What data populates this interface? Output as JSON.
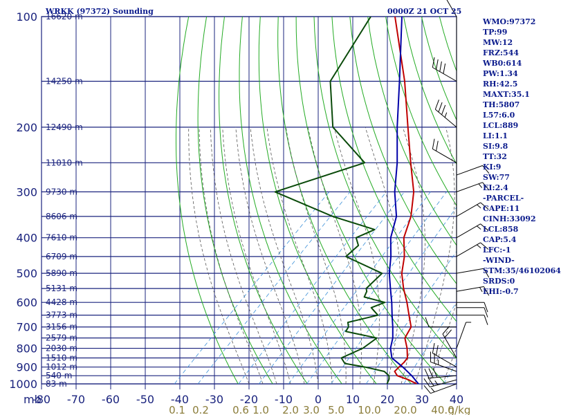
{
  "header": {
    "station": "WRKK (97372) Sounding",
    "time": "0000Z 21 OCT 25"
  },
  "indices": [
    "WMO:97372",
    "TP:99",
    "MW:12",
    "FRZ:544",
    "WB0:614",
    "PW:1.34",
    "RH:42.5",
    "MAXT:35.1",
    "TH:5807",
    "L57:6.0",
    "LCL:889",
    "LI:1.1",
    "SI:9.8",
    "TT:32",
    "KI:9",
    "SW:77",
    "EI:2.4",
    "-PARCEL-",
    "CAPE:11",
    "CINH:33092",
    "LCL:858",
    "CAP:5.4",
    "LFC:-1",
    "-WIND-",
    "STM:35/46102064",
    "SRDS:0",
    "EHI:-0.7"
  ],
  "colors": {
    "isobar": "#1a237e",
    "dry_adiabat": "#22aa22",
    "moist_adiabat": "#555555",
    "mixing_ratio": "#3a8fd8",
    "temperature": "#c00000",
    "dewpoint": "#0a4a0a",
    "parcel": "#0000a8",
    "wind": "#000000",
    "mixing_label": "#8b7d3a"
  },
  "chart_data": {
    "type": "line",
    "title": "",
    "xlabel": "mb",
    "x_ticks": [
      "-80",
      "-70",
      "-60",
      "-50",
      "-40",
      "-30",
      "-20",
      "-10",
      "0",
      "10",
      "20",
      "30",
      "40"
    ],
    "pressure_ticks": [
      "100",
      "200",
      "300",
      "400",
      "500",
      "600",
      "700",
      "800",
      "900",
      "1000"
    ],
    "pressure_levels": [
      100,
      150,
      200,
      250,
      300,
      350,
      400,
      450,
      500,
      550,
      600,
      650,
      700,
      750,
      800,
      850,
      900,
      950,
      1000
    ],
    "height_labels": [
      "16620 m",
      "14250 m",
      "12490 m",
      "11010 m",
      "9730 m",
      "8606 m",
      "7610 m",
      "6709 m",
      "5890 m",
      "5131 m",
      "4428 m",
      "3773 m",
      "3156 m",
      "2579 m",
      "2030 m",
      "1510 m",
      "1012 m",
      "540 m",
      "83 m"
    ],
    "mixing_ratio_labels": [
      "0.1",
      "0.2",
      "0.6",
      "1.0",
      "2.0",
      "3.0",
      "5.0",
      "10.0",
      "20.0",
      "40.0"
    ],
    "mixing_ratio_unit": "g/kg",
    "xlim": [
      -80,
      40
    ],
    "ylim": [
      1000,
      100
    ],
    "series": [
      {
        "key": "temperature",
        "points": [
          [
            1000,
            28.5
          ],
          [
            975,
            25.0
          ],
          [
            950,
            20.5
          ],
          [
            925,
            18.5
          ],
          [
            900,
            18.5
          ],
          [
            875,
            18.6
          ],
          [
            850,
            18.3
          ],
          [
            800,
            15.4
          ],
          [
            750,
            11.8
          ],
          [
            700,
            10.4
          ],
          [
            650,
            6.4
          ],
          [
            600,
            2.1
          ],
          [
            550,
            -2.9
          ],
          [
            500,
            -7.8
          ],
          [
            450,
            -11.9
          ],
          [
            400,
            -17.5
          ],
          [
            350,
            -21.6
          ],
          [
            300,
            -27.9
          ],
          [
            250,
            -37.2
          ],
          [
            200,
            -48.3
          ],
          [
            150,
            -62.5
          ],
          [
            100,
            -84.0
          ]
        ]
      },
      {
        "key": "dewpoint",
        "points": [
          [
            1000,
            19.9
          ],
          [
            970,
            19.1
          ],
          [
            950,
            18.1
          ],
          [
            925,
            15.5
          ],
          [
            900,
            8.7
          ],
          [
            880,
            1.8
          ],
          [
            850,
            -0.8
          ],
          [
            800,
            2.6
          ],
          [
            750,
            3.7
          ],
          [
            720,
            -7.2
          ],
          [
            700,
            -7.7
          ],
          [
            680,
            -9.2
          ],
          [
            650,
            -2.6
          ],
          [
            620,
            -6.7
          ],
          [
            600,
            -4.3
          ],
          [
            580,
            -11.8
          ],
          [
            560,
            -12.7
          ],
          [
            550,
            -13.7
          ],
          [
            500,
            -13.5
          ],
          [
            450,
            -28.8
          ],
          [
            420,
            -28.4
          ],
          [
            400,
            -31.3
          ],
          [
            380,
            -28.3
          ],
          [
            350,
            -44.2
          ],
          [
            300,
            -68.0
          ],
          [
            250,
            -50.5
          ],
          [
            200,
            -70.0
          ],
          [
            150,
            -84.0
          ],
          [
            100,
            -91.0
          ]
        ]
      },
      {
        "key": "parcel",
        "points": [
          [
            1000,
            29.0
          ],
          [
            950,
            24.7
          ],
          [
            900,
            19.6
          ],
          [
            850,
            13.8
          ],
          [
            800,
            10.6
          ],
          [
            750,
            8.3
          ],
          [
            700,
            5.1
          ],
          [
            650,
            1.5
          ],
          [
            600,
            -2.3
          ],
          [
            550,
            -6.7
          ],
          [
            500,
            -11.4
          ],
          [
            450,
            -15.8
          ],
          [
            400,
            -21.3
          ],
          [
            350,
            -25.8
          ],
          [
            300,
            -33.4
          ],
          [
            250,
            -41.1
          ],
          [
            200,
            -51.4
          ],
          [
            150,
            -64.0
          ],
          [
            100,
            -82.0
          ]
        ]
      }
    ],
    "winds": [
      {
        "p": 1000,
        "dir": 250,
        "spd": 15
      },
      {
        "p": 975,
        "dir": 255,
        "spd": 25
      },
      {
        "p": 950,
        "dir": 265,
        "spd": 30
      },
      {
        "p": 925,
        "dir": 290,
        "spd": 25
      },
      {
        "p": 900,
        "dir": 300,
        "spd": 20
      },
      {
        "p": 850,
        "dir": 330,
        "spd": 20
      },
      {
        "p": 800,
        "dir": 20,
        "spd": 5
      },
      {
        "p": 700,
        "dir": 270,
        "spd": 10
      },
      {
        "p": 650,
        "dir": 90,
        "spd": 10
      },
      {
        "p": 620,
        "dir": 90,
        "spd": 10
      },
      {
        "p": 600,
        "dir": 90,
        "spd": 10
      },
      {
        "p": 560,
        "dir": 80,
        "spd": 15
      },
      {
        "p": 500,
        "dir": 80,
        "spd": 10
      },
      {
        "p": 450,
        "dir": 60,
        "spd": 15
      },
      {
        "p": 400,
        "dir": 60,
        "spd": 15
      },
      {
        "p": 350,
        "dir": 60,
        "spd": 15
      },
      {
        "p": 300,
        "dir": 70,
        "spd": 15
      },
      {
        "p": 270,
        "dir": 70,
        "spd": 10
      },
      {
        "p": 250,
        "dir": 300,
        "spd": 20
      },
      {
        "p": 200,
        "dir": 310,
        "spd": 35
      },
      {
        "p": 150,
        "dir": 300,
        "spd": 40
      },
      {
        "p": 100,
        "dir": 330,
        "spd": 20
      }
    ]
  }
}
